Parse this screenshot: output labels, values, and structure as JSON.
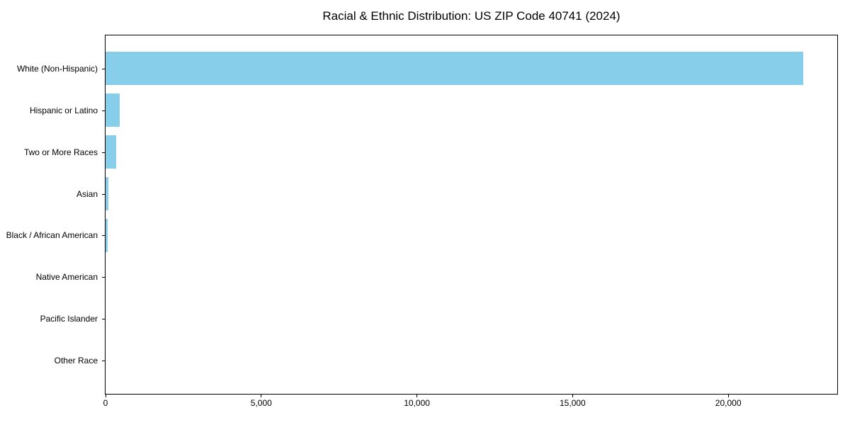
{
  "chart_data": {
    "type": "bar",
    "orientation": "horizontal",
    "title": "Racial & Ethnic Distribution: US ZIP Code 40741 (2024)",
    "categories": [
      "White (Non-Hispanic)",
      "Hispanic or Latino",
      "Two or More Races",
      "Asian",
      "Black / African American",
      "Native American",
      "Pacific Islander",
      "Other Race"
    ],
    "values": [
      22400,
      450,
      330,
      90,
      60,
      0,
      0,
      0
    ],
    "xlabel": "",
    "ylabel": "",
    "xlim": [
      0,
      23500
    ],
    "x_ticks": [
      0,
      5000,
      10000,
      15000,
      20000
    ],
    "x_tick_labels": [
      "0",
      "5,000",
      "10,000",
      "15,000",
      "20,000"
    ],
    "bar_color": "#87ceeb",
    "axis_color": "#000000",
    "grid": false,
    "legend": false
  }
}
